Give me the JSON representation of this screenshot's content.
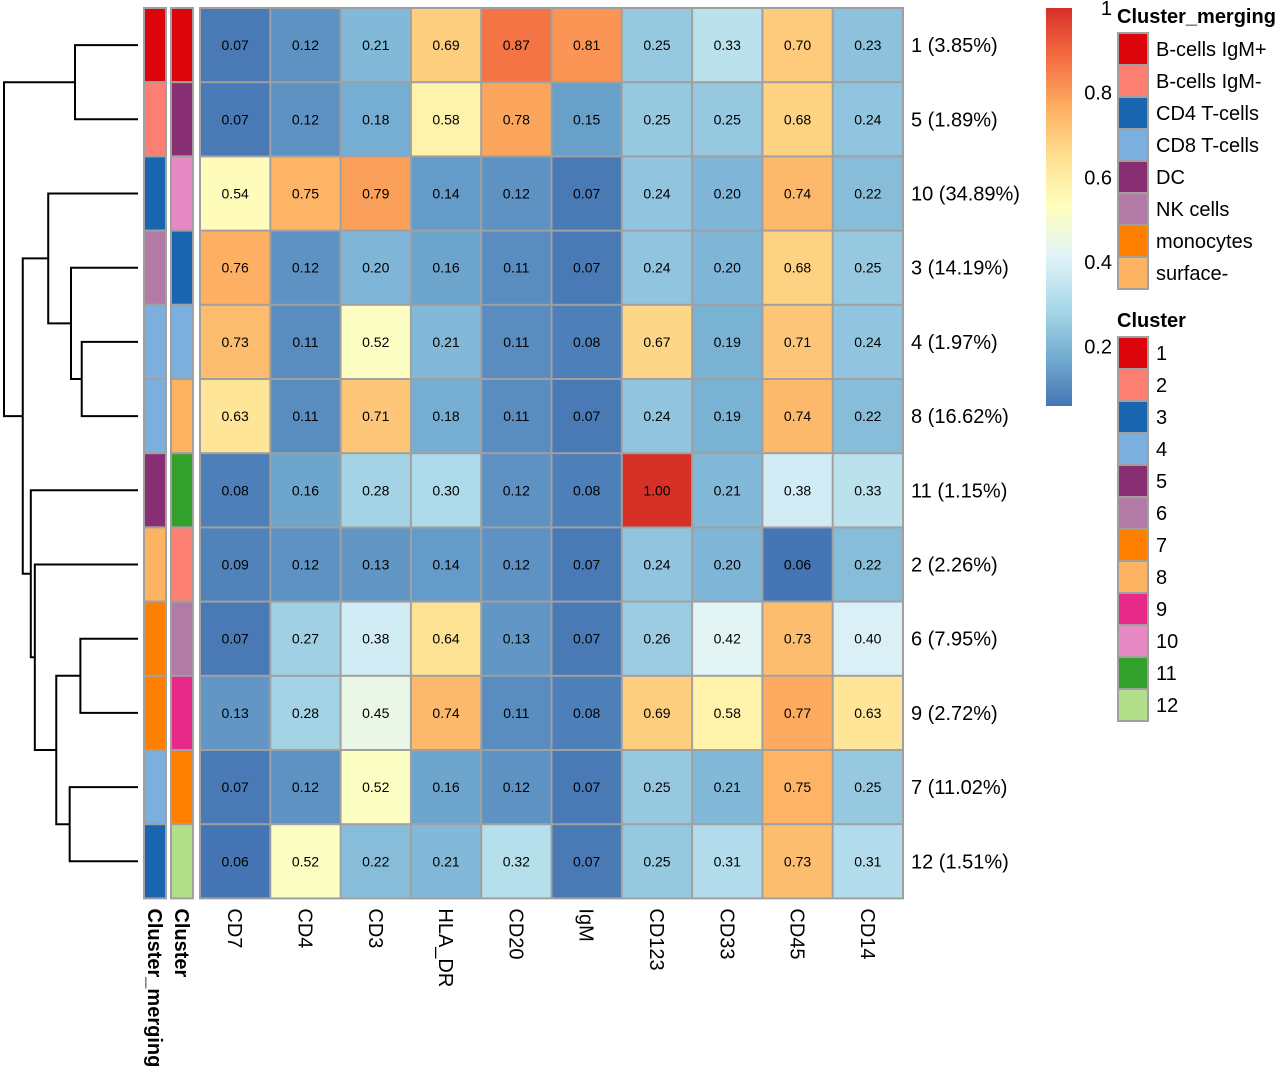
{
  "chart_data": {
    "type": "heatmap",
    "title": "",
    "columns": [
      "CD7",
      "CD4",
      "CD3",
      "HLA_DR",
      "CD20",
      "IgM",
      "CD123",
      "CD33",
      "CD45",
      "CD14"
    ],
    "rows": [
      {
        "cluster": "1",
        "label": "1 (3.85%)",
        "merging": "B-cells IgM+",
        "values": [
          0.07,
          0.12,
          0.21,
          0.69,
          0.87,
          0.81,
          0.25,
          0.33,
          0.7,
          0.23
        ]
      },
      {
        "cluster": "5",
        "label": "5 (1.89%)",
        "merging": "B-cells IgM-",
        "values": [
          0.07,
          0.12,
          0.18,
          0.58,
          0.78,
          0.15,
          0.25,
          0.25,
          0.68,
          0.24
        ]
      },
      {
        "cluster": "10",
        "label": "10 (34.89%)",
        "merging": "CD4 T-cells",
        "values": [
          0.54,
          0.75,
          0.79,
          0.14,
          0.12,
          0.07,
          0.24,
          0.2,
          0.74,
          0.22
        ]
      },
      {
        "cluster": "3",
        "label": "3 (14.19%)",
        "merging": "NK cells",
        "values": [
          0.76,
          0.12,
          0.2,
          0.16,
          0.11,
          0.07,
          0.24,
          0.2,
          0.68,
          0.25
        ]
      },
      {
        "cluster": "4",
        "label": "4 (1.97%)",
        "merging": "CD8 T-cells",
        "values": [
          0.73,
          0.11,
          0.52,
          0.21,
          0.11,
          0.08,
          0.67,
          0.19,
          0.71,
          0.24
        ]
      },
      {
        "cluster": "8",
        "label": "8 (16.62%)",
        "merging": "CD8 T-cells",
        "values": [
          0.63,
          0.11,
          0.71,
          0.18,
          0.11,
          0.07,
          0.24,
          0.19,
          0.74,
          0.22
        ]
      },
      {
        "cluster": "11",
        "label": "11 (1.15%)",
        "merging": "DC",
        "values": [
          0.08,
          0.16,
          0.28,
          0.3,
          0.12,
          0.08,
          1.0,
          0.21,
          0.38,
          0.33
        ]
      },
      {
        "cluster": "2",
        "label": "2 (2.26%)",
        "merging": "surface-",
        "values": [
          0.09,
          0.12,
          0.13,
          0.14,
          0.12,
          0.07,
          0.24,
          0.2,
          0.06,
          0.22
        ]
      },
      {
        "cluster": "6",
        "label": "6 (7.95%)",
        "merging": "monocytes",
        "values": [
          0.07,
          0.27,
          0.38,
          0.64,
          0.13,
          0.07,
          0.26,
          0.42,
          0.73,
          0.4
        ]
      },
      {
        "cluster": "9",
        "label": "9 (2.72%)",
        "merging": "monocytes",
        "values": [
          0.13,
          0.28,
          0.45,
          0.74,
          0.11,
          0.08,
          0.69,
          0.58,
          0.77,
          0.63
        ]
      },
      {
        "cluster": "7",
        "label": "7 (11.02%)",
        "merging": "CD8 T-cells",
        "values": [
          0.07,
          0.12,
          0.52,
          0.16,
          0.12,
          0.07,
          0.25,
          0.21,
          0.75,
          0.25
        ]
      },
      {
        "cluster": "12",
        "label": "12 (1.51%)",
        "merging": "CD4 T-cells",
        "values": [
          0.06,
          0.52,
          0.22,
          0.21,
          0.32,
          0.07,
          0.25,
          0.31,
          0.73,
          0.31
        ]
      }
    ],
    "annotation_columns": [
      "Cluster_merging",
      "Cluster"
    ],
    "color_scale": {
      "range": [
        0.06,
        1.0
      ],
      "ticks": [
        "0.2",
        "0.4",
        "0.6",
        "0.8",
        "1"
      ],
      "tick_values": [
        0.2,
        0.4,
        0.6,
        0.8,
        1.0
      ],
      "palette": [
        "#4575b4",
        "#74add1",
        "#abd9e9",
        "#e0f3f8",
        "#ffffbf",
        "#fee090",
        "#fdae61",
        "#f46d43",
        "#d73027"
      ]
    },
    "legends": {
      "cluster_merging": {
        "title": "Cluster_merging",
        "items": [
          {
            "label": "B-cells IgM+",
            "color": "#dc050c"
          },
          {
            "label": "B-cells IgM-",
            "color": "#fb8072"
          },
          {
            "label": "CD4 T-cells",
            "color": "#1965b0"
          },
          {
            "label": "CD8 T-cells",
            "color": "#7bafde"
          },
          {
            "label": "DC",
            "color": "#882e72"
          },
          {
            "label": "NK cells",
            "color": "#b17ba6"
          },
          {
            "label": "monocytes",
            "color": "#ff7f00"
          },
          {
            "label": "surface-",
            "color": "#fdb462"
          }
        ]
      },
      "cluster": {
        "title": "Cluster",
        "items": [
          {
            "label": "1",
            "color": "#dc050c"
          },
          {
            "label": "2",
            "color": "#fb8072"
          },
          {
            "label": "3",
            "color": "#1965b0"
          },
          {
            "label": "4",
            "color": "#7bafde"
          },
          {
            "label": "5",
            "color": "#882e72"
          },
          {
            "label": "6",
            "color": "#b17ba6"
          },
          {
            "label": "7",
            "color": "#ff7f00"
          },
          {
            "label": "8",
            "color": "#fdb462"
          },
          {
            "label": "9",
            "color": "#e7298a"
          },
          {
            "label": "10",
            "color": "#e78ac3"
          },
          {
            "label": "11",
            "color": "#33a02c"
          },
          {
            "label": "12",
            "color": "#b2df8a"
          }
        ]
      }
    },
    "dendrogram": {
      "leaf_order": [
        "1",
        "5",
        "10",
        "3",
        "4",
        "8",
        "11",
        "2",
        "6",
        "9",
        "7",
        "12"
      ],
      "merges": [
        {
          "left": "leaf:0",
          "right": "leaf:1",
          "height": 0.47
        },
        {
          "left": "leaf:4",
          "right": "leaf:5",
          "height": 0.42
        },
        {
          "left": "leaf:3",
          "right": "node:1",
          "height": 0.5
        },
        {
          "left": "leaf:2",
          "right": "node:2",
          "height": 0.67
        },
        {
          "left": "leaf:8",
          "right": "leaf:9",
          "height": 0.43
        },
        {
          "left": "leaf:10",
          "right": "leaf:11",
          "height": 0.51
        },
        {
          "left": "node:4",
          "right": "node:5",
          "height": 0.61
        },
        {
          "left": "leaf:7",
          "right": "node:6",
          "height": 0.77
        },
        {
          "left": "leaf:6",
          "right": "node:7",
          "height": 0.8
        },
        {
          "left": "node:3",
          "right": "node:8",
          "height": 0.86
        },
        {
          "left": "node:0",
          "right": "node:9",
          "height": 1.0
        }
      ]
    }
  }
}
